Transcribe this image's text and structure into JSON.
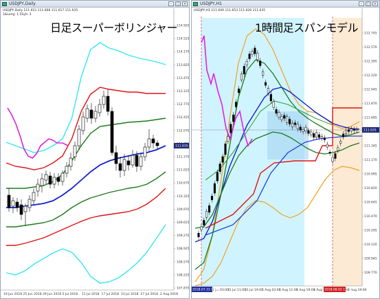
{
  "left_window": {
    "title": "USDJPY,Daily",
    "ohlc": "USDJPY,Daily 111.653 111.668 111.617 111.635",
    "indicator": "1&Long: 1.5Syh: 3",
    "overlay_text": "日足スーパーボリンジャー",
    "current_price": "111.635",
    "price_labels": [
      "114.920",
      "114.525",
      "114.170",
      "113.825",
      "113.470",
      "113.125",
      "112.770",
      "112.425",
      "112.070",
      "111.725",
      "111.370",
      "111.025",
      "110.670",
      "110.325",
      "109.970",
      "109.625",
      "109.270",
      "108.925",
      "108.570",
      "108.225",
      "107.870"
    ],
    "date_labels": [
      "19 Jun 2018",
      "25 Jun 2018",
      "29 Jun 2018",
      "5 Jul 2018",
      "11 Jul 2018",
      "17 Jul 2018",
      "23 Jul 2018",
      "27 Jul 2018",
      "2 Aug 2018"
    ]
  },
  "right_window": {
    "title": "USDJPY,H1",
    "ohlc": "USDJPY,H1 111.640 111.653 111.626 111.635",
    "overlay_text": "1時間足スパンモデル",
    "current_price": "111.635",
    "price_labels": [
      "112.745",
      "112.570",
      "112.395",
      "112.220",
      "112.045",
      "111.870",
      "111.695",
      "111.520",
      "111.345",
      "111.170",
      "110.995",
      "110.820",
      "110.645",
      "110.470",
      "110.295",
      "110.120",
      "109.945",
      "109.770"
    ],
    "date_labels": [
      "30 Jul 2018",
      "31 Jul 03:00",
      "31 Jul 11:00",
      "31 Jul 19:00",
      "1 Aug 03:00",
      "1 Aug 11:00",
      "1 Aug 19:00",
      "2 Aug 03:00",
      "2 Aug 11:00",
      "2 Aug 19:00"
    ],
    "left_badge": "2018.07.31 03:00",
    "right_badge": "2018.08.02 13:00"
  },
  "colors": {
    "cyan_band": "#33e6f2",
    "red_band": "#e01010",
    "green_band": "#1a7a1a",
    "blue_mid": "#1020d0",
    "magenta_lag": "#e020e0",
    "orange_band": "#f0a020",
    "span_fill": "#c8f2ff",
    "price_box": "#1f2a78"
  }
}
